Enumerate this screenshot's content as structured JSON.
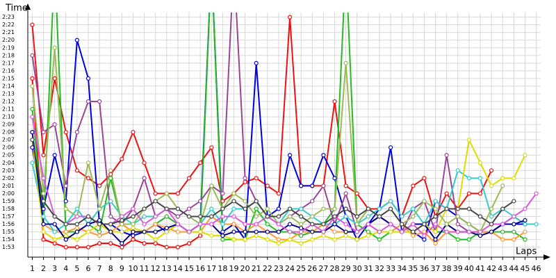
{
  "chart_data": {
    "type": "line",
    "y_title": "Time",
    "x_title": "Laps",
    "x": [
      1,
      2,
      3,
      4,
      5,
      6,
      7,
      8,
      9,
      10,
      11,
      12,
      13,
      14,
      15,
      16,
      17,
      18,
      19,
      20,
      21,
      22,
      23,
      24,
      25,
      26,
      27,
      28,
      29,
      30,
      31,
      32,
      33,
      34,
      35,
      36,
      37,
      38,
      39,
      40,
      41,
      42,
      43,
      44,
      45,
      46
    ],
    "xlim": [
      0.6,
      46.4
    ],
    "xticks": [
      1,
      2,
      3,
      4,
      5,
      6,
      7,
      8,
      9,
      10,
      11,
      12,
      13,
      14,
      15,
      16,
      17,
      18,
      19,
      20,
      21,
      22,
      23,
      24,
      25,
      26,
      27,
      28,
      29,
      30,
      31,
      32,
      33,
      34,
      35,
      36,
      37,
      38,
      39,
      40,
      41,
      42,
      43,
      44,
      45,
      46
    ],
    "ylim": [
      111.7,
      143.6
    ],
    "yticks": [
      {
        "value": 113,
        "label": "1:53"
      },
      {
        "value": 114,
        "label": "1:54"
      },
      {
        "value": 115,
        "label": "1:55"
      },
      {
        "value": 116,
        "label": "1:56"
      },
      {
        "value": 117,
        "label": "1:57"
      },
      {
        "value": 118,
        "label": "1:58"
      },
      {
        "value": 119,
        "label": "1:59"
      },
      {
        "value": 120,
        "label": "2:00"
      },
      {
        "value": 121,
        "label": "2:01"
      },
      {
        "value": 122,
        "label": "2:02"
      },
      {
        "value": 123,
        "label": "2:03"
      },
      {
        "value": 124,
        "label": "2:04"
      },
      {
        "value": 125,
        "label": "2:05"
      },
      {
        "value": 126,
        "label": "2:06"
      },
      {
        "value": 127,
        "label": "2:07"
      },
      {
        "value": 128,
        "label": "2:08"
      },
      {
        "value": 129,
        "label": "2:09"
      },
      {
        "value": 130,
        "label": "2:10"
      },
      {
        "value": 131,
        "label": "2:11"
      },
      {
        "value": 132,
        "label": "2:12"
      },
      {
        "value": 133,
        "label": "2:13"
      },
      {
        "value": 134,
        "label": "2:14"
      },
      {
        "value": 135,
        "label": "2:15"
      },
      {
        "value": 136,
        "label": "2:16"
      },
      {
        "value": 137,
        "label": "2:17"
      },
      {
        "value": 138,
        "label": "2:18"
      },
      {
        "value": 139,
        "label": "2:19"
      },
      {
        "value": 140,
        "label": "2:20"
      },
      {
        "value": 141,
        "label": "2:21"
      },
      {
        "value": 142,
        "label": "2:22"
      },
      {
        "value": 143,
        "label": "2:23"
      }
    ],
    "grid": true,
    "series": [
      {
        "color": "#ff0000",
        "values": [
          135,
          114,
          113.5,
          113,
          113,
          113,
          113.5,
          113.5,
          113,
          114,
          113.5,
          113.5,
          113,
          113,
          113.5,
          114.5,
          null,
          null,
          null,
          null,
          null,
          null,
          null,
          null,
          null,
          null,
          null,
          null,
          null,
          null,
          null,
          null,
          null,
          null,
          null,
          null,
          null,
          null,
          null,
          null,
          null,
          null,
          null,
          null,
          null,
          null
        ]
      },
      {
        "color": "#ee1111",
        "values": [
          142,
          125,
          135,
          128,
          123,
          122,
          121,
          122.5,
          124.5,
          128,
          124,
          120,
          120,
          120,
          122,
          124,
          126,
          119,
          120,
          121.5,
          122,
          121,
          120,
          143,
          121,
          121,
          121,
          132,
          121,
          120,
          118,
          118,
          119,
          117,
          121,
          122,
          117,
          120,
          118,
          120,
          120,
          123,
          null,
          null,
          null,
          null
        ]
      },
      {
        "color": "#0000dd",
        "values": [
          126,
          118,
          125,
          119,
          140,
          135,
          116,
          116,
          115,
          114.5,
          115,
          116,
          115,
          116,
          115,
          116,
          150,
          115,
          116,
          114,
          137,
          117,
          118,
          125,
          121,
          121,
          125,
          122,
          117,
          114,
          116,
          118,
          126,
          115,
          115,
          114,
          119,
          118,
          117,
          116,
          115,
          115,
          116,
          116,
          116,
          null
        ]
      },
      {
        "color": "#22bb22",
        "values": [
          131,
          116,
          150,
          115,
          115,
          116,
          115,
          122,
          116,
          115,
          115,
          116,
          117,
          116,
          115,
          115,
          150,
          114,
          114,
          114,
          118,
          116,
          115,
          115,
          114.5,
          115,
          116,
          118,
          150,
          116,
          115,
          114,
          115,
          116,
          115,
          116,
          115,
          115,
          114,
          114,
          115,
          115,
          115,
          115,
          114,
          null
        ]
      },
      {
        "color": "#994499",
        "values": [
          138,
          128,
          129,
          121,
          128,
          132,
          132,
          117,
          116,
          118,
          122,
          117,
          118,
          117,
          118,
          119,
          121,
          120,
          150,
          122,
          119,
          117,
          116,
          117,
          118,
          119,
          121,
          116,
          120,
          115,
          116,
          117,
          116,
          115,
          118,
          119,
          115,
          125,
          116,
          115,
          115,
          115,
          116,
          117,
          116,
          null
        ]
      },
      {
        "color": "#ff9933",
        "values": [
          128,
          116,
          115,
          115,
          115.5,
          115,
          114.5,
          115,
          116,
          115,
          115,
          116,
          115.5,
          115,
          115,
          115,
          117,
          116,
          116,
          115,
          116,
          115,
          114,
          114,
          115,
          115,
          116,
          115,
          115,
          115,
          116,
          115,
          115,
          116,
          114.5,
          115,
          113.5,
          115,
          115,
          115,
          115,
          115,
          114,
          114,
          115,
          null
        ]
      },
      {
        "color": "#33cccc",
        "values": [
          124,
          117,
          115,
          116,
          118,
          116,
          118,
          119,
          117,
          116,
          117,
          117,
          118,
          118,
          117,
          116,
          118,
          116,
          118,
          118,
          119,
          117,
          116,
          118,
          118,
          117,
          116,
          116,
          117,
          116,
          117,
          118,
          119,
          117,
          118,
          116,
          119,
          118,
          123,
          122,
          122,
          117,
          118,
          117,
          116,
          116
        ]
      },
      {
        "color": "#dddd00",
        "values": [
          127,
          115,
          114,
          114.5,
          114,
          115,
          116,
          115,
          115,
          115.5,
          115,
          114,
          115,
          116,
          115,
          115,
          114.5,
          114.5,
          114,
          114,
          114.5,
          114,
          113.5,
          114,
          113.5,
          114,
          114.5,
          114,
          114.5,
          114,
          114.5,
          115,
          115,
          115,
          115,
          116,
          115,
          118,
          118,
          127,
          124,
          121,
          122,
          122,
          125,
          null
        ]
      },
      {
        "color": "#000088",
        "values": [
          128,
          116,
          116,
          114,
          115,
          116,
          116.5,
          115,
          113.5,
          115,
          115,
          115,
          115.5,
          116,
          115,
          116,
          116,
          114.5,
          115,
          115,
          115,
          115,
          115,
          116,
          115.5,
          115,
          115,
          116,
          115,
          115,
          116,
          117,
          116,
          115,
          116,
          116,
          114,
          116,
          115,
          115,
          114.5,
          115,
          116,
          116,
          116.5,
          null
        ]
      },
      {
        "color": "#99bb55",
        "values": [
          134,
          120,
          139,
          118,
          117,
          124,
          118,
          123,
          116,
          116,
          118,
          119,
          120,
          118,
          117,
          116,
          121,
          118,
          120,
          119,
          117,
          118,
          116,
          117,
          116,
          117,
          118,
          118,
          137,
          116,
          118,
          117,
          118,
          116,
          117,
          119,
          118,
          116,
          117,
          116,
          115,
          118,
          121,
          null,
          null,
          null
        ]
      },
      {
        "color": "#dd55dd",
        "values": [
          130,
          122,
          117,
          116,
          117,
          117,
          116,
          116,
          117,
          118,
          116,
          117,
          118,
          116,
          115,
          116,
          116,
          117,
          117,
          116,
          116,
          117,
          116,
          115,
          115,
          116,
          115,
          117,
          116,
          115,
          116,
          115,
          116,
          115,
          116,
          114.5,
          116,
          115,
          115,
          115,
          115,
          116,
          116,
          117,
          118,
          120
        ]
      },
      {
        "color": "#444444",
        "values": [
          127,
          119,
          117,
          116,
          116,
          117,
          116,
          116,
          116.5,
          117,
          118,
          119,
          118,
          118,
          117,
          117,
          117,
          118,
          119,
          118,
          119,
          117,
          117,
          118,
          117,
          116,
          116,
          117,
          118,
          117,
          118,
          117,
          118,
          116,
          115,
          116,
          117,
          118,
          118,
          118,
          117,
          116,
          118,
          119,
          null,
          null
        ]
      }
    ]
  }
}
